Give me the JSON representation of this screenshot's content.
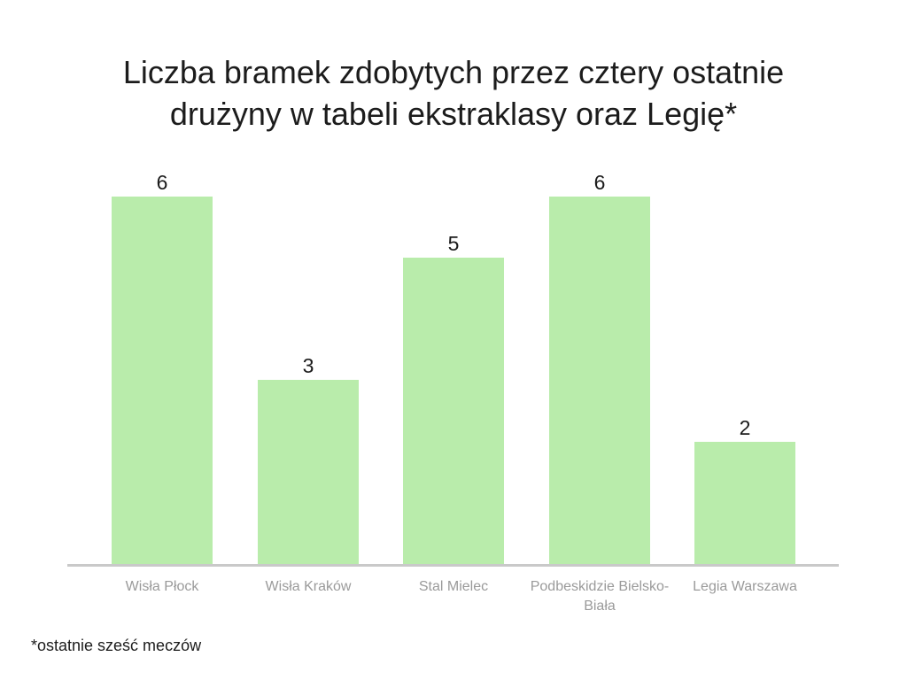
{
  "title_lines": [
    "Liczba bramek zdobytych przez cztery ostatnie",
    "drużyny w tabeli ekstraklasy oraz Legię*"
  ],
  "footnote": "*ostatnie sześć meczów",
  "chart_data": {
    "type": "bar",
    "title": "Liczba bramek zdobytych przez cztery ostatnie drużyny w tabeli ekstraklasy oraz Legię*",
    "categories": [
      "Wisła Płock",
      "Wisła Kraków",
      "Stal Mielec",
      "Podbeskidzie Bielsko-Biała",
      "Legia Warszawa"
    ],
    "values": [
      6,
      3,
      5,
      6,
      2
    ],
    "xlabel": "",
    "ylabel": "",
    "ylim": [
      0,
      6
    ],
    "grid": false,
    "legend": false,
    "data_labels": true,
    "footnote": "*ostatnie sześć meczów",
    "colors": {
      "bar_fill": "#b9ecab",
      "axis_line": "#c9c9c9",
      "category_label": "#9a9a9a",
      "value_label": "#1a1a1a",
      "title_text": "#1c1c1c"
    }
  }
}
